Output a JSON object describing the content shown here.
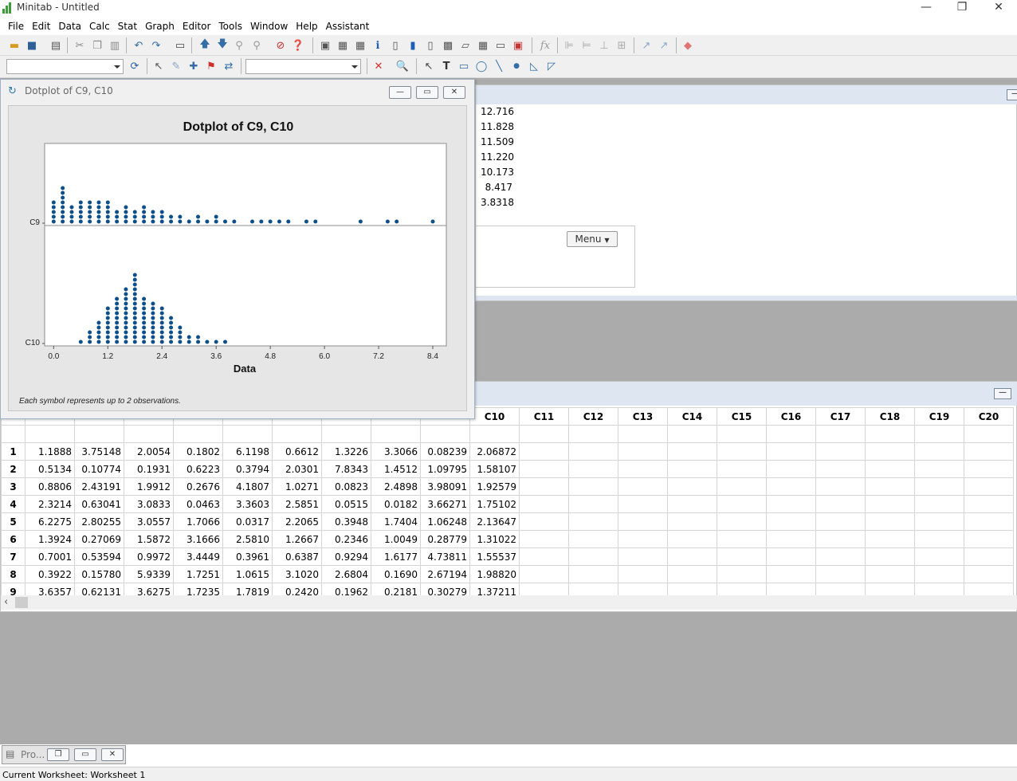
{
  "app": {
    "title": "Minitab - Untitled"
  },
  "window_controls": {
    "minimize": "—",
    "restore": "❐",
    "close": "✕"
  },
  "menu": [
    "File",
    "Edit",
    "Data",
    "Calc",
    "Stat",
    "Graph",
    "Editor",
    "Tools",
    "Window",
    "Help",
    "Assistant"
  ],
  "toolbar": {
    "fx_label": "fx",
    "text_tool": "T"
  },
  "session": {
    "values": [
      "12.716",
      "11.828",
      "11.509",
      "11.220",
      "10.173",
      "8.417",
      "3.8318"
    ],
    "menu_button": "Menu"
  },
  "graph_window": {
    "title": "Dotplot of C9, C10"
  },
  "chart_data": {
    "type": "dotplot",
    "title": "Dotplot of C9, C10",
    "xlabel": "Data",
    "xlim": [
      -0.2,
      8.7
    ],
    "xticks": [
      "0.0",
      "1.2",
      "2.4",
      "3.6",
      "4.8",
      "6.0",
      "7.2",
      "8.4"
    ],
    "footnote": "Each symbol represents up to 2 observations.",
    "dot_color": "#0d4f8b",
    "series": [
      {
        "name": "C9",
        "x": [
          0.0,
          0.2,
          0.4,
          0.6,
          0.8,
          1.0,
          1.2,
          1.4,
          1.6,
          1.8,
          2.0,
          2.2,
          2.4,
          2.6,
          2.8,
          3.0,
          3.2,
          3.4,
          3.6,
          3.8,
          4.0,
          4.2,
          4.4,
          4.6,
          4.8,
          5.0,
          5.2,
          5.6,
          5.8,
          6.8,
          7.4,
          7.6,
          8.4
        ],
        "counts": [
          5,
          8,
          4,
          5,
          5,
          5,
          5,
          3,
          4,
          3,
          4,
          3,
          3,
          2,
          2,
          1,
          2,
          1,
          2,
          1,
          1,
          0,
          1,
          1,
          1,
          1,
          1,
          1,
          1,
          1,
          1,
          1,
          1
        ]
      },
      {
        "name": "C10",
        "x": [
          0.6,
          0.8,
          1.0,
          1.2,
          1.4,
          1.6,
          1.8,
          2.0,
          2.2,
          2.4,
          2.6,
          2.8,
          3.0,
          3.2,
          3.4,
          3.6,
          3.8
        ],
        "counts": [
          1,
          3,
          5,
          8,
          10,
          12,
          15,
          10,
          9,
          8,
          6,
          4,
          2,
          2,
          1,
          1,
          1
        ]
      }
    ]
  },
  "worksheet": {
    "columns": [
      "",
      "",
      "",
      "",
      "",
      "",
      "",
      "",
      "",
      "C10",
      "C11",
      "C12",
      "C13",
      "C14",
      "C15",
      "C16",
      "C17",
      "C18",
      "C19",
      "C20"
    ],
    "rows": [
      [
        "1",
        "1.1888",
        "3.75148",
        "2.0054",
        "0.1802",
        "6.1198",
        "0.6612",
        "1.3226",
        "3.3066",
        "0.08239",
        "2.06872"
      ],
      [
        "2",
        "0.5134",
        "0.10774",
        "0.1931",
        "0.6223",
        "0.3794",
        "2.0301",
        "7.8343",
        "1.4512",
        "1.09795",
        "1.58107"
      ],
      [
        "3",
        "0.8806",
        "2.43191",
        "1.9912",
        "0.2676",
        "4.1807",
        "1.0271",
        "0.0823",
        "2.4898",
        "3.98091",
        "1.92579"
      ],
      [
        "4",
        "2.3214",
        "0.63041",
        "3.0833",
        "0.0463",
        "3.3603",
        "2.5851",
        "0.0515",
        "0.0182",
        "3.66271",
        "1.75102"
      ],
      [
        "5",
        "6.2275",
        "2.80255",
        "3.0557",
        "1.7066",
        "0.0317",
        "2.2065",
        "0.3948",
        "1.7404",
        "1.06248",
        "2.13647"
      ],
      [
        "6",
        "1.3924",
        "0.27069",
        "1.5872",
        "3.1666",
        "2.5810",
        "1.2667",
        "0.2346",
        "1.0049",
        "0.28779",
        "1.31022"
      ],
      [
        "7",
        "0.7001",
        "0.53594",
        "0.9972",
        "3.4449",
        "0.3961",
        "0.6387",
        "0.9294",
        "1.6177",
        "4.73811",
        "1.55537"
      ],
      [
        "8",
        "0.3922",
        "0.15780",
        "5.9339",
        "1.7251",
        "1.0615",
        "3.1020",
        "2.6804",
        "0.1690",
        "2.67194",
        "1.98820"
      ],
      [
        "9",
        "3.6357",
        "0.62131",
        "3.6275",
        "1.7235",
        "1.7819",
        "0.2420",
        "0.1962",
        "0.2181",
        "0.30279",
        "1.37211"
      ]
    ]
  },
  "taskbar": {
    "label": "Pro..."
  },
  "statusbar": {
    "text": "Current Worksheet: Worksheet 1"
  }
}
